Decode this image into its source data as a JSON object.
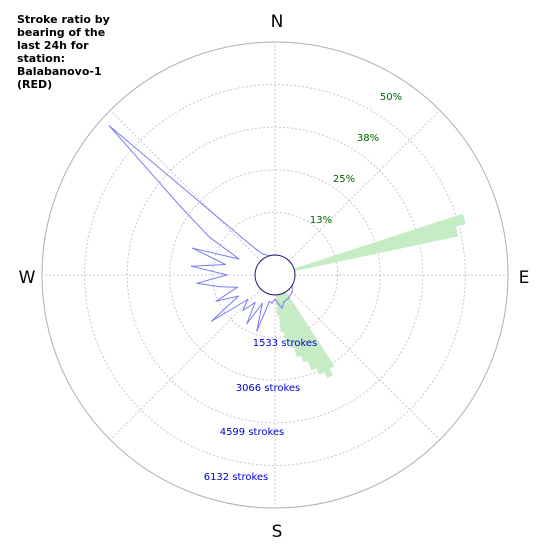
{
  "title_lines": [
    "Stroke ratio by",
    "bearing of the",
    "last 24h for",
    "station:",
    "Balabanovo-1",
    "(RED)"
  ],
  "colors": {
    "ratio_fill": "#c6ecc6",
    "count_line": "#7b7bef",
    "grid": "#c8c8c8",
    "percent_labels": "#006400",
    "stroke_labels": "#0000cc"
  },
  "chart_data": {
    "type": "polar",
    "title": "Stroke ratio by bearing of the last 24h for station: Balabanovo-1 (RED)",
    "cardinals": [
      {
        "key": "n",
        "label": "N",
        "bearing": 0
      },
      {
        "key": "e",
        "label": "E",
        "bearing": 90
      },
      {
        "key": "s",
        "label": "S",
        "bearing": 180
      },
      {
        "key": "w",
        "label": "W",
        "bearing": 270
      }
    ],
    "ratio_ticks": [
      {
        "key": "r13",
        "label": "13%",
        "value": 12.5
      },
      {
        "key": "r25",
        "label": "25%",
        "value": 25
      },
      {
        "key": "r38",
        "label": "38%",
        "value": 37.5
      },
      {
        "key": "r50",
        "label": "50%",
        "value": 50
      }
    ],
    "stroke_ticks": [
      {
        "key": "s1533",
        "label": "1533 strokes",
        "value": 1533
      },
      {
        "key": "s3066",
        "label": "3066 strokes",
        "value": 3066
      },
      {
        "key": "s4599",
        "label": "4599 strokes",
        "value": 4599
      },
      {
        "key": "s6132",
        "label": "6132 strokes",
        "value": 6132
      }
    ],
    "ratio_series": {
      "unit": "%",
      "range": [
        0,
        62.5
      ],
      "sectors": [
        {
          "from": 72,
          "to": 75,
          "value": 52
        },
        {
          "from": 75,
          "to": 78,
          "value": 49
        },
        {
          "from": 147,
          "to": 150,
          "value": 26
        },
        {
          "from": 150,
          "to": 153,
          "value": 28
        },
        {
          "from": 153,
          "to": 156,
          "value": 26
        },
        {
          "from": 156,
          "to": 159,
          "value": 24
        },
        {
          "from": 159,
          "to": 162,
          "value": 21
        },
        {
          "from": 162,
          "to": 165,
          "value": 19
        },
        {
          "from": 165,
          "to": 168,
          "value": 16
        },
        {
          "from": 168,
          "to": 171,
          "value": 14
        },
        {
          "from": 171,
          "to": 174,
          "value": 11
        },
        {
          "from": 174,
          "to": 177,
          "value": 6
        }
      ]
    },
    "count_series": {
      "unit": "strokes",
      "range": [
        0,
        7665
      ],
      "points": [
        {
          "bearing": 0,
          "value": 0
        },
        {
          "bearing": 90,
          "value": 0
        },
        {
          "bearing": 120,
          "value": 0
        },
        {
          "bearing": 135,
          "value": 150
        },
        {
          "bearing": 150,
          "value": 250
        },
        {
          "bearing": 162,
          "value": 300
        },
        {
          "bearing": 168,
          "value": 500
        },
        {
          "bearing": 174,
          "value": 300
        },
        {
          "bearing": 180,
          "value": 150
        },
        {
          "bearing": 186,
          "value": 300
        },
        {
          "bearing": 192,
          "value": 250
        },
        {
          "bearing": 198,
          "value": 1400
        },
        {
          "bearing": 204,
          "value": 400
        },
        {
          "bearing": 210,
          "value": 1300
        },
        {
          "bearing": 216,
          "value": 500
        },
        {
          "bearing": 222,
          "value": 1000
        },
        {
          "bearing": 228,
          "value": 600
        },
        {
          "bearing": 234,
          "value": 2100
        },
        {
          "bearing": 240,
          "value": 800
        },
        {
          "bearing": 246,
          "value": 1600
        },
        {
          "bearing": 252,
          "value": 700
        },
        {
          "bearing": 258,
          "value": 1300
        },
        {
          "bearing": 264,
          "value": 2100
        },
        {
          "bearing": 270,
          "value": 1000
        },
        {
          "bearing": 276,
          "value": 2300
        },
        {
          "bearing": 282,
          "value": 1100
        },
        {
          "bearing": 288,
          "value": 2400
        },
        {
          "bearing": 294,
          "value": 700
        },
        {
          "bearing": 300,
          "value": 2000
        },
        {
          "bearing": 306,
          "value": 3500
        },
        {
          "bearing": 312,
          "value": 7300
        },
        {
          "bearing": 318,
          "value": 1200
        },
        {
          "bearing": 324,
          "value": 400
        },
        {
          "bearing": 330,
          "value": 150
        },
        {
          "bearing": 345,
          "value": 0
        }
      ]
    },
    "grid": true
  }
}
